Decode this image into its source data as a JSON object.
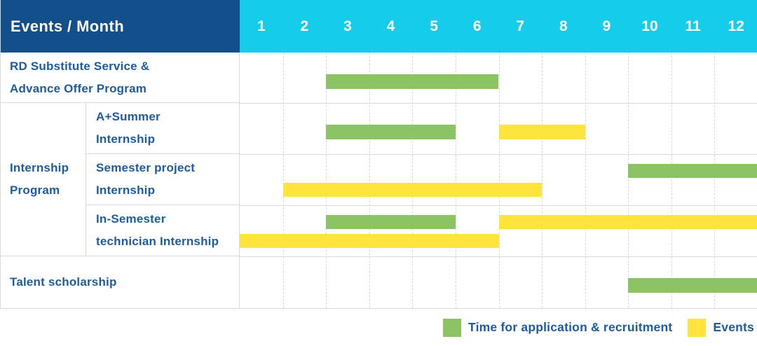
{
  "header": {
    "title": "Events / Month"
  },
  "group_label": "Internship\nProgram",
  "colors": {
    "navy": "#134f8a",
    "cyan": "#15cdea",
    "green": "#8bc365",
    "yellow": "#ffe43e",
    "label_blue": "#1c5c9e",
    "grid": "#d9d9d9"
  },
  "legend": [
    {
      "series": "application",
      "color": "#8bc365",
      "label": "Time for application & recruitment"
    },
    {
      "series": "events",
      "color": "#ffe43e",
      "label": "Events"
    }
  ],
  "chart_data": {
    "type": "gantt",
    "title": "Events / Month",
    "x_unit": "month",
    "x_ticks": [
      "1",
      "2",
      "3",
      "4",
      "5",
      "6",
      "7",
      "8",
      "9",
      "10",
      "11",
      "12"
    ],
    "x_range": [
      1,
      12
    ],
    "grid": true,
    "legend_position": "bottom-right",
    "series_meta": [
      {
        "name": "application",
        "label": "Time for application & recruitment",
        "color": "#8bc365"
      },
      {
        "name": "events",
        "label": "Events",
        "color": "#ffe43e"
      }
    ],
    "rows": [
      {
        "group": null,
        "label": "RD Substitute Service &\nAdvance Offer Program",
        "bars": [
          {
            "series": "application",
            "start_month": 3,
            "end_month": 6,
            "line": "single"
          }
        ]
      },
      {
        "group": "Internship Program",
        "label": "A+Summer\nInternship",
        "bars": [
          {
            "series": "application",
            "start_month": 3,
            "end_month": 5,
            "line": "single"
          },
          {
            "series": "events",
            "start_month": 7,
            "end_month": 8,
            "line": "single"
          }
        ]
      },
      {
        "group": "Internship Program",
        "label": "Semester project\nInternship",
        "bars": [
          {
            "series": "application",
            "start_month": 10,
            "end_month": 12,
            "line": "upper"
          },
          {
            "series": "events",
            "start_month": 2,
            "end_month": 7,
            "line": "lower"
          }
        ]
      },
      {
        "group": "Internship Program",
        "label": "In-Semester\ntechnician Internship",
        "bars": [
          {
            "series": "application",
            "start_month": 3,
            "end_month": 5,
            "line": "upper"
          },
          {
            "series": "events",
            "start_month": 7,
            "end_month": 12,
            "line": "upper"
          },
          {
            "series": "events",
            "start_month": 1,
            "end_month": 6,
            "line": "lower"
          }
        ]
      },
      {
        "group": null,
        "label": "Talent scholarship",
        "bars": [
          {
            "series": "application",
            "start_month": 10,
            "end_month": 12,
            "line": "single"
          }
        ]
      }
    ]
  }
}
